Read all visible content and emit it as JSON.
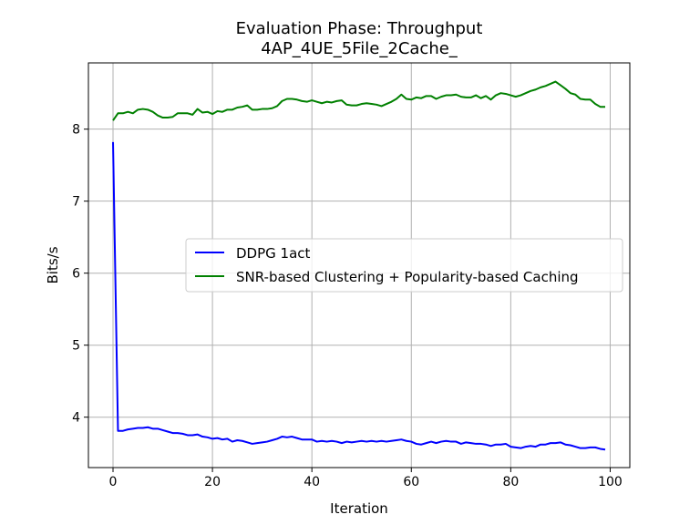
{
  "chart_data": {
    "type": "line",
    "title_line1": "Evaluation Phase: Throughput",
    "title_line2": "4AP_4UE_5File_2Cache_",
    "xlabel": "Iteration",
    "ylabel": "Bits/s",
    "xlim": [
      -4.95,
      103.95
    ],
    "ylim": [
      3.3,
      8.92
    ],
    "xticks": [
      0,
      20,
      40,
      60,
      80,
      100
    ],
    "yticks": [
      4,
      5,
      6,
      7,
      8
    ],
    "grid": true,
    "legend_position": "center-right",
    "series": [
      {
        "name": "DDPG 1act",
        "color": "#0000ff",
        "values": [
          7.82,
          3.81,
          3.81,
          3.83,
          3.84,
          3.85,
          3.85,
          3.86,
          3.84,
          3.84,
          3.82,
          3.8,
          3.78,
          3.78,
          3.77,
          3.75,
          3.75,
          3.76,
          3.73,
          3.72,
          3.7,
          3.71,
          3.69,
          3.7,
          3.66,
          3.68,
          3.67,
          3.65,
          3.63,
          3.64,
          3.65,
          3.66,
          3.68,
          3.7,
          3.73,
          3.72,
          3.73,
          3.71,
          3.69,
          3.69,
          3.69,
          3.66,
          3.67,
          3.66,
          3.67,
          3.66,
          3.64,
          3.66,
          3.65,
          3.66,
          3.67,
          3.66,
          3.67,
          3.66,
          3.67,
          3.66,
          3.67,
          3.68,
          3.69,
          3.67,
          3.66,
          3.63,
          3.62,
          3.64,
          3.66,
          3.64,
          3.66,
          3.67,
          3.66,
          3.66,
          3.63,
          3.65,
          3.64,
          3.63,
          3.63,
          3.62,
          3.6,
          3.62,
          3.62,
          3.63,
          3.59,
          3.58,
          3.57,
          3.59,
          3.6,
          3.59,
          3.62,
          3.62,
          3.64,
          3.64,
          3.65,
          3.62,
          3.61,
          3.59,
          3.57,
          3.57,
          3.58,
          3.58,
          3.56,
          3.55
        ]
      },
      {
        "name": "SNR-based Clustering + Popularity-based Caching",
        "color": "#008000",
        "values": [
          8.12,
          8.22,
          8.22,
          8.24,
          8.22,
          8.27,
          8.28,
          8.27,
          8.24,
          8.19,
          8.16,
          8.16,
          8.17,
          8.22,
          8.22,
          8.22,
          8.2,
          8.28,
          8.23,
          8.24,
          8.21,
          8.25,
          8.24,
          8.27,
          8.27,
          8.3,
          8.31,
          8.33,
          8.27,
          8.27,
          8.28,
          8.28,
          8.29,
          8.32,
          8.39,
          8.42,
          8.42,
          8.41,
          8.39,
          8.38,
          8.4,
          8.38,
          8.36,
          8.38,
          8.37,
          8.39,
          8.4,
          8.34,
          8.33,
          8.33,
          8.35,
          8.36,
          8.35,
          8.34,
          8.32,
          8.35,
          8.38,
          8.42,
          8.48,
          8.42,
          8.41,
          8.44,
          8.43,
          8.46,
          8.46,
          8.42,
          8.45,
          8.47,
          8.47,
          8.48,
          8.45,
          8.44,
          8.44,
          8.47,
          8.43,
          8.46,
          8.41,
          8.47,
          8.5,
          8.49,
          8.47,
          8.45,
          8.47,
          8.5,
          8.53,
          8.55,
          8.58,
          8.6,
          8.63,
          8.66,
          8.61,
          8.56,
          8.5,
          8.48,
          8.42,
          8.41,
          8.41,
          8.35,
          8.31,
          8.31
        ]
      }
    ]
  }
}
